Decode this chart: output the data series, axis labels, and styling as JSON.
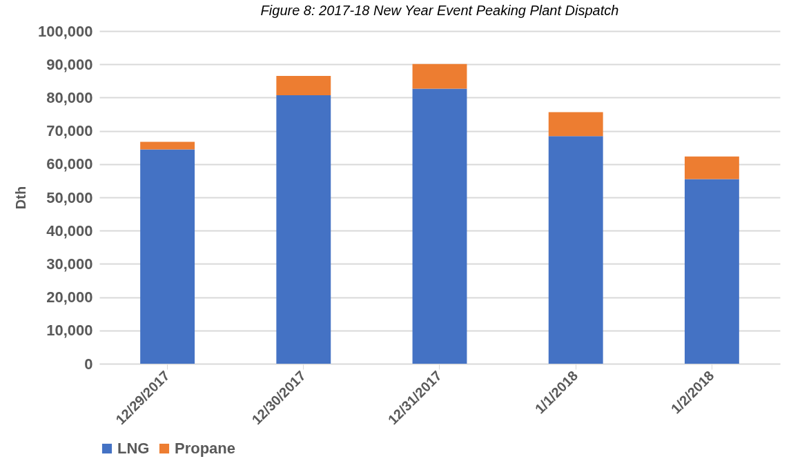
{
  "chart_data": {
    "type": "bar",
    "title": "Figure 8: 2017-18 New Year Event Peaking Plant Dispatch",
    "ylabel": "Dth",
    "categories": [
      "12/29/2017",
      "12/30/2017",
      "12/31/2017",
      "1/1/2018",
      "1/2/2018"
    ],
    "stacked": true,
    "series": [
      {
        "name": "LNG",
        "color": "#4472c4",
        "values": [
          64400,
          80700,
          82700,
          68400,
          55500
        ]
      },
      {
        "name": "Propane",
        "color": "#ed7d31",
        "values": [
          2300,
          5800,
          7400,
          7200,
          6800
        ]
      }
    ],
    "ylim": [
      0,
      100000
    ],
    "yticks": [
      0,
      {
        "value": 10000,
        "label": "10,000"
      },
      {
        "value": 20000,
        "label": "20,000"
      },
      {
        "value": 30000,
        "label": "30,000"
      },
      {
        "value": 40000,
        "label": "40,000"
      },
      {
        "value": 50000,
        "label": "50,000"
      },
      {
        "value": 60000,
        "label": "60,000"
      },
      {
        "value": 70000,
        "label": "70,000"
      },
      {
        "value": 80000,
        "label": "80,000"
      },
      {
        "value": 90000,
        "label": "90,000"
      },
      {
        "value": 100000,
        "label": "100,000"
      }
    ],
    "grid": "y",
    "legend": "bottom"
  }
}
